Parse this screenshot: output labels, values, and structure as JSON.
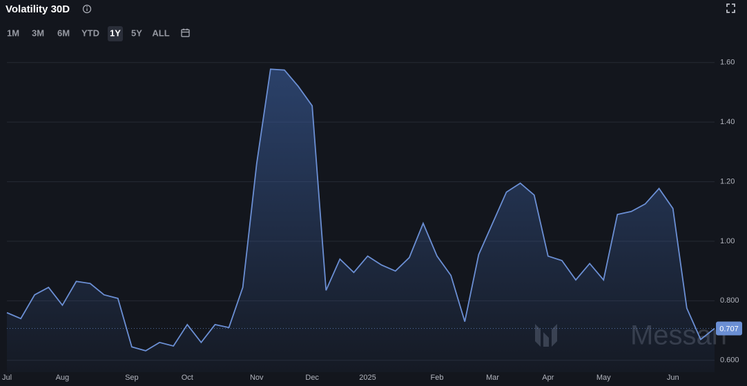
{
  "header": {
    "title": "Volatility 30D",
    "ranges": [
      "1M",
      "3M",
      "6M",
      "YTD",
      "1Y",
      "5Y",
      "ALL"
    ],
    "active_range": 4
  },
  "watermark": "Messari",
  "chart_data": {
    "type": "area",
    "categories": [
      "Jul",
      null,
      null,
      null,
      "Aug",
      null,
      null,
      null,
      null,
      "Sep",
      null,
      null,
      null,
      "Oct",
      null,
      null,
      null,
      null,
      "Nov",
      null,
      null,
      null,
      "Dec",
      null,
      null,
      null,
      "2025",
      null,
      null,
      null,
      null,
      "Feb",
      null,
      null,
      null,
      "Mar",
      null,
      null,
      null,
      "Apr",
      null,
      null,
      null,
      "May",
      null,
      null,
      null,
      null,
      "Jun",
      null,
      null,
      null
    ],
    "series": [
      {
        "name": "Volatility 30D",
        "color": "#6b8fd4",
        "values": [
          0.76,
          0.74,
          0.82,
          0.845,
          0.785,
          0.865,
          0.858,
          0.82,
          0.808,
          0.645,
          0.632,
          0.66,
          0.648,
          0.72,
          0.66,
          0.72,
          0.71,
          0.845,
          1.26,
          1.578,
          1.575,
          1.52,
          1.455,
          0.835,
          0.94,
          0.895,
          0.95,
          0.92,
          0.9,
          0.945,
          1.06,
          0.95,
          0.885,
          0.73,
          0.955,
          1.06,
          1.165,
          1.195,
          1.155,
          0.95,
          0.935,
          0.87,
          0.925,
          0.87,
          1.09,
          1.1,
          1.125,
          1.177,
          1.11,
          0.775,
          0.67,
          0.707
        ]
      }
    ],
    "ylim": [
      0.56,
      1.625
    ],
    "yticks": [
      {
        "value": 0.6,
        "label": "0.600"
      },
      {
        "value": 0.8,
        "label": "0.800"
      },
      {
        "value": 1.0,
        "label": "1.00"
      },
      {
        "value": 1.2,
        "label": "1.20"
      },
      {
        "value": 1.4,
        "label": "1.40"
      },
      {
        "value": 1.6,
        "label": "1.60"
      }
    ],
    "grid": true
  }
}
